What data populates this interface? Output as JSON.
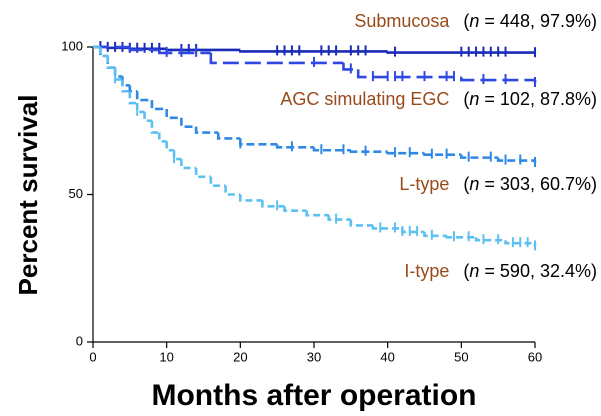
{
  "chart_data": {
    "type": "step",
    "y_label": "Percent survival",
    "x_label": "Months after operation",
    "xlim": [
      0,
      60
    ],
    "xticks": [
      0,
      10,
      20,
      30,
      40,
      50,
      60
    ],
    "ylim": [
      0,
      100
    ],
    "yticks": [
      0,
      50,
      100
    ],
    "series": [
      {
        "name": "Submucosa",
        "annotation": [
          "(",
          "n",
          " = 448, 97.9%)"
        ],
        "color": "#1a2bb8",
        "x": [
          0,
          2,
          5,
          10,
          20,
          40,
          60
        ],
        "values": [
          100,
          99.7,
          99.4,
          99,
          98.5,
          98.1,
          97.9
        ],
        "censored": [
          1,
          2,
          3,
          4,
          5,
          6,
          7,
          8,
          9,
          12,
          13,
          14,
          25,
          26,
          27,
          28,
          31,
          32,
          33,
          35,
          36,
          37,
          41,
          50,
          51,
          52,
          53,
          54,
          55,
          56,
          60
        ]
      },
      {
        "name": "AGC simulating EGC",
        "annotation": [
          "(",
          "n",
          " = 102, 87.8%)"
        ],
        "color": "#3048e2",
        "x": [
          0,
          5,
          9,
          16,
          34,
          36,
          50,
          60
        ],
        "values": [
          100,
          99,
          98,
          94.6,
          92.4,
          89.8,
          88.8,
          87.8
        ],
        "censored": [
          10,
          12,
          14,
          30,
          35,
          38,
          40,
          41,
          42,
          45,
          48,
          49,
          53,
          56,
          60
        ]
      },
      {
        "name": "L-type",
        "annotation": [
          "(",
          "n",
          " = 303, 60.7%)"
        ],
        "color": "#3088e6",
        "x": [
          0,
          1,
          2,
          3,
          4,
          5,
          6,
          8,
          10,
          12,
          14,
          17,
          20,
          25,
          30,
          35,
          40,
          45,
          50,
          55,
          60
        ],
        "values": [
          100,
          97,
          93,
          90,
          87,
          85,
          82,
          79,
          76,
          73,
          71,
          69,
          67,
          66,
          65,
          64.5,
          64,
          63.5,
          62.5,
          61.5,
          60.7
        ],
        "censored": [
          20,
          27,
          31,
          34,
          37,
          41,
          43,
          46,
          48,
          51,
          54,
          56,
          58,
          60
        ]
      },
      {
        "name": "I-type",
        "annotation": [
          "(",
          "n",
          " = 590, 32.4%)"
        ],
        "color": "#5cc0f2",
        "x": [
          0,
          1,
          2,
          3,
          4,
          5,
          6,
          7,
          8,
          9,
          10,
          11,
          12,
          14,
          16,
          18,
          20,
          23,
          26,
          29,
          32,
          35,
          38,
          42,
          45,
          48,
          52,
          56,
          60
        ],
        "values": [
          100,
          97,
          93,
          89,
          85,
          81,
          78,
          75,
          71,
          68,
          65,
          62,
          59,
          56,
          53,
          50,
          48,
          46,
          44.5,
          43,
          41.5,
          39.5,
          38.5,
          37.3,
          36,
          35.5,
          34.5,
          33.5,
          32.4
        ],
        "censored": [
          3,
          6,
          11,
          25,
          33,
          39,
          41,
          42,
          43,
          44,
          46,
          49,
          51,
          53,
          55,
          57,
          58,
          59,
          60
        ]
      }
    ]
  }
}
